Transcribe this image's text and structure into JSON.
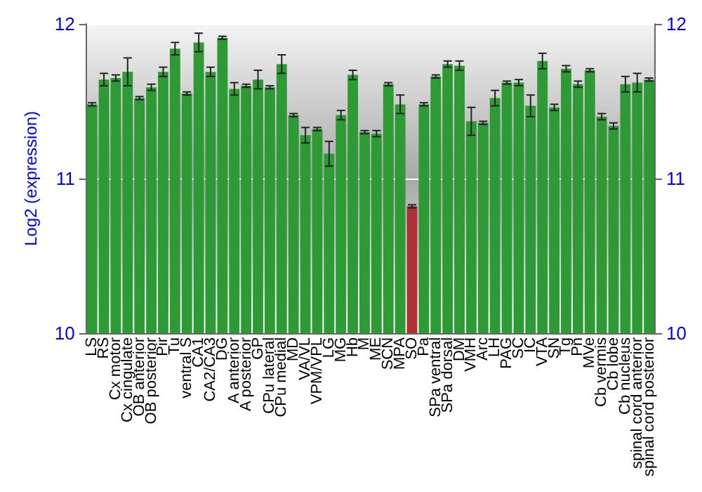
{
  "chart_data": {
    "type": "bar",
    "ylabel": "Log2 (expression)",
    "categories": [
      "LS",
      "RS",
      "Cx motor",
      "Cx cingulate",
      "OB anterior",
      "OB posterior",
      "Pir",
      "Tu",
      "ventral S",
      "CA1",
      "CA2/CA3",
      "DG",
      "A anterior",
      "A posterior",
      "GP",
      "CPu lateral",
      "CPu medial",
      "MD",
      "VA/VL",
      "VPM/VPL",
      "LG",
      "MG",
      "Hb",
      "M",
      "ME",
      "SCN",
      "MPA",
      "SO",
      "Pa",
      "SPa ventral",
      "SPa dorsal",
      "DM",
      "VMH",
      "Arc",
      "LH",
      "PAG",
      "SC",
      "IC",
      "VTA",
      "SN",
      "Tg",
      "Pn",
      "MVe",
      "Cb vermis",
      "Cb lobe",
      "Cb nucleus",
      "spinal cord anterior",
      "spinal cord posterior"
    ],
    "values": [
      11.48,
      11.64,
      11.65,
      11.69,
      11.52,
      11.59,
      11.69,
      11.84,
      11.55,
      11.88,
      11.69,
      11.91,
      11.58,
      11.6,
      11.64,
      11.59,
      11.74,
      11.41,
      11.28,
      11.32,
      11.16,
      11.41,
      11.67,
      11.3,
      11.29,
      11.61,
      11.48,
      10.82,
      11.48,
      11.66,
      11.74,
      11.73,
      11.37,
      11.36,
      11.52,
      11.62,
      11.62,
      11.47,
      11.76,
      11.46,
      11.71,
      11.61,
      11.7,
      11.4,
      11.34,
      11.61,
      11.62,
      11.64
    ],
    "errors": [
      0.01,
      0.04,
      0.02,
      0.09,
      0.01,
      0.02,
      0.03,
      0.04,
      0.01,
      0.06,
      0.03,
      0.01,
      0.04,
      0.01,
      0.06,
      0.01,
      0.06,
      0.01,
      0.05,
      0.01,
      0.08,
      0.03,
      0.03,
      0.01,
      0.02,
      0.01,
      0.06,
      0.01,
      0.01,
      0.01,
      0.02,
      0.03,
      0.09,
      0.01,
      0.05,
      0.01,
      0.02,
      0.07,
      0.05,
      0.02,
      0.02,
      0.02,
      0.01,
      0.02,
      0.02,
      0.05,
      0.06,
      0.01
    ],
    "colors": [
      "#2e9a36",
      "#2e9a36",
      "#2e9a36",
      "#2e9a36",
      "#2e9a36",
      "#2e9a36",
      "#2e9a36",
      "#2e9a36",
      "#2e9a36",
      "#2e9a36",
      "#2e9a36",
      "#2e9a36",
      "#2e9a36",
      "#2e9a36",
      "#2e9a36",
      "#2e9a36",
      "#2e9a36",
      "#2e9a36",
      "#2e9a36",
      "#2e9a36",
      "#2e9a36",
      "#2e9a36",
      "#2e9a36",
      "#2e9a36",
      "#2e9a36",
      "#2e9a36",
      "#2e9a36",
      "#b0303a",
      "#2e9a36",
      "#2e9a36",
      "#2e9a36",
      "#2e9a36",
      "#2e9a36",
      "#2e9a36",
      "#2e9a36",
      "#2e9a36",
      "#2e9a36",
      "#2e9a36",
      "#2e9a36",
      "#2e9a36",
      "#2e9a36",
      "#2e9a36",
      "#2e9a36",
      "#2e9a36",
      "#2e9a36",
      "#2e9a36",
      "#2e9a36",
      "#2e9a36"
    ],
    "ylim": [
      10,
      12
    ],
    "yticks": [
      10,
      11,
      12
    ],
    "y2lim": [
      10,
      12
    ],
    "y2ticks": [
      10,
      11,
      12
    ],
    "grid": "y"
  }
}
